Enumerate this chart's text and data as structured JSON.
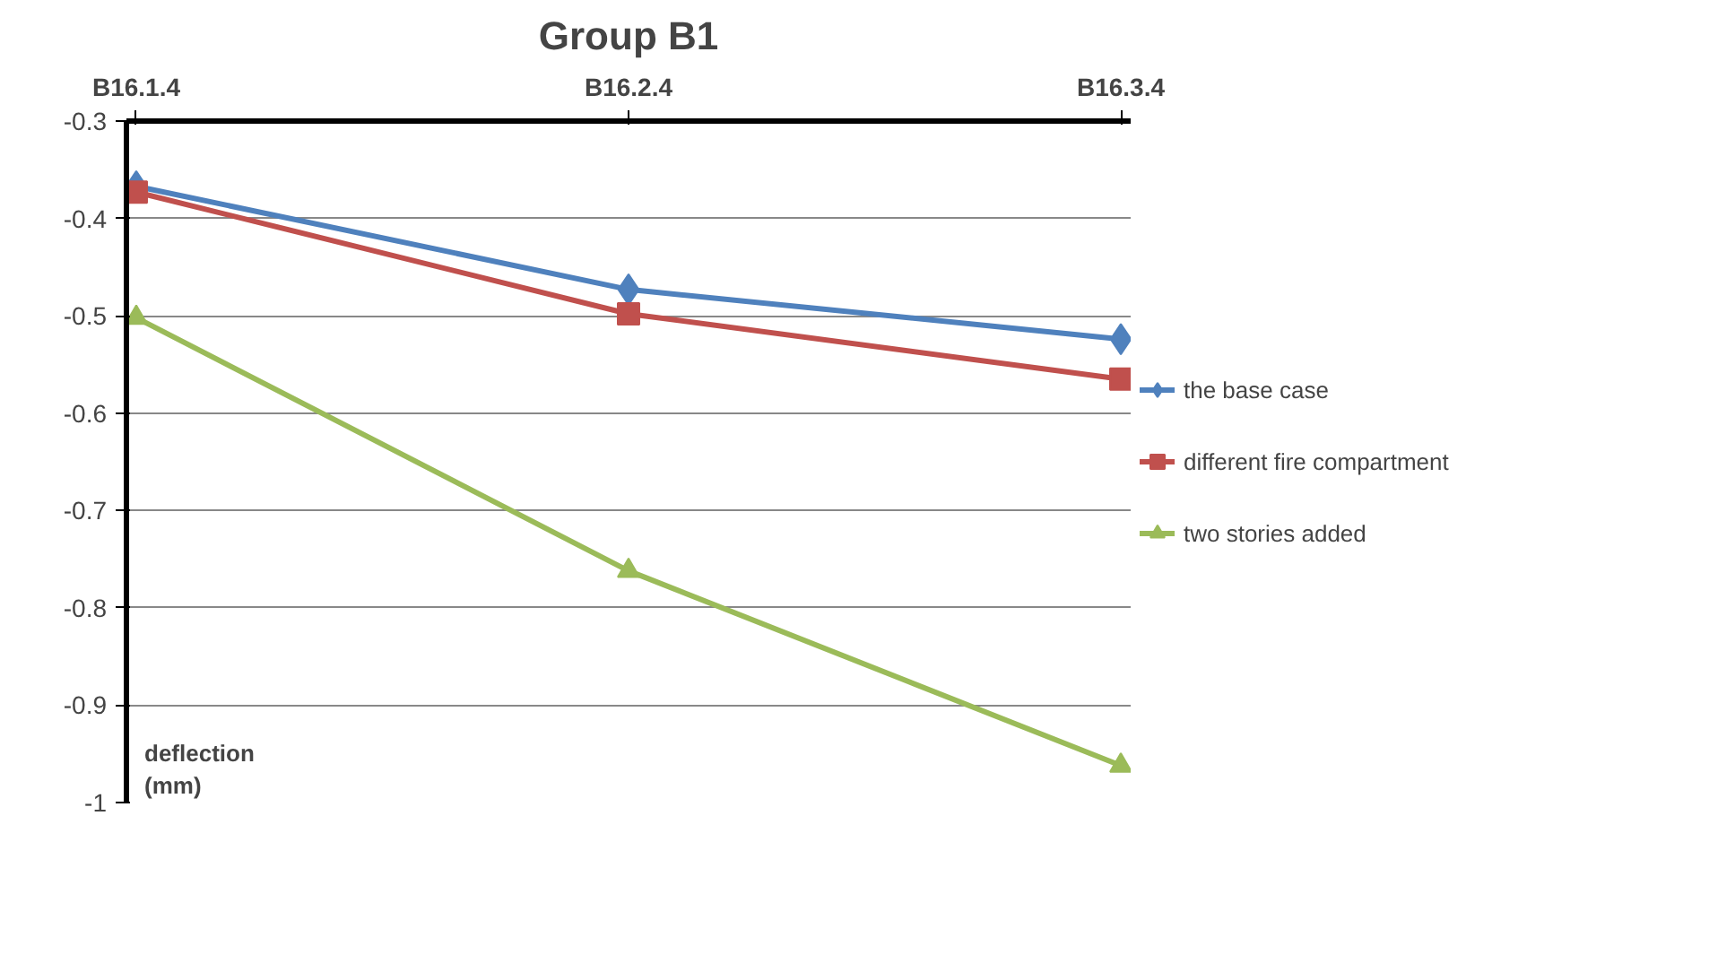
{
  "chart_data": {
    "type": "line",
    "title": "Group B1",
    "ylabel": "deflection (mm)",
    "categories": [
      "B16.1.4",
      "B16.2.4",
      "B16.3.4"
    ],
    "series": [
      {
        "name": "the base case",
        "color": "#4f81bd",
        "marker": "diamond",
        "values": [
          -0.367,
          -0.473,
          -0.524
        ]
      },
      {
        "name": "different fire compartment",
        "color": "#c0504d",
        "marker": "square",
        "values": [
          -0.373,
          -0.498,
          -0.565
        ]
      },
      {
        "name": "two stories added",
        "color": "#9bbb59",
        "marker": "triangle",
        "values": [
          -0.502,
          -0.762,
          -0.962
        ]
      }
    ],
    "ylim": [
      -1,
      -0.3
    ],
    "yticks": [
      -1,
      -0.9,
      -0.8,
      -0.7,
      -0.6,
      -0.5,
      -0.4,
      -0.3
    ],
    "grid": "y",
    "legend": "right"
  }
}
